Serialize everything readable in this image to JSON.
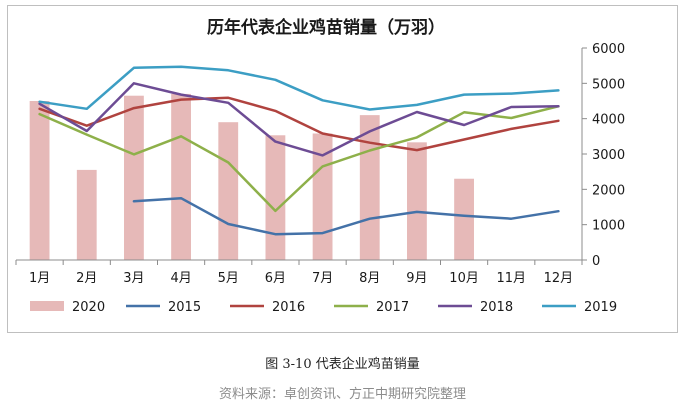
{
  "chart_data": {
    "type": "bar+line",
    "title": "历年代表企业鸡苗销量（万羽）",
    "categories": [
      "1月",
      "2月",
      "3月",
      "4月",
      "5月",
      "6月",
      "7月",
      "8月",
      "9月",
      "10月",
      "11月",
      "12月"
    ],
    "ylim": [
      0,
      6000
    ],
    "yticks": [
      0,
      1000,
      2000,
      3000,
      4000,
      5000,
      6000
    ],
    "grid": false,
    "legend_position": "bottom",
    "bar_series": {
      "name": "2020",
      "color": "#e6b9b8",
      "values": [
        4500,
        2550,
        4650,
        4700,
        3900,
        3530,
        3580,
        4100,
        3330,
        2300,
        null,
        null
      ]
    },
    "series": [
      {
        "name": "2015",
        "color": "#4472a8",
        "values": [
          null,
          null,
          1660,
          1750,
          1020,
          730,
          760,
          1170,
          1360,
          1250,
          1170,
          1380
        ]
      },
      {
        "name": "2016",
        "color": "#b0433f",
        "values": [
          4280,
          3800,
          4300,
          4540,
          4590,
          4220,
          3580,
          3320,
          3110,
          3410,
          3710,
          3940
        ]
      },
      {
        "name": "2017",
        "color": "#8eb04a",
        "values": [
          4130,
          3550,
          2990,
          3500,
          2760,
          1390,
          2650,
          3100,
          3470,
          4180,
          4020,
          4350
        ]
      },
      {
        "name": "2018",
        "color": "#6d4c94",
        "values": [
          4420,
          3650,
          5000,
          4680,
          4450,
          3350,
          2960,
          3640,
          4190,
          3820,
          4330,
          4350
        ]
      },
      {
        "name": "2019",
        "color": "#3c9ec4",
        "values": [
          4480,
          4280,
          5440,
          5470,
          5370,
          5100,
          4520,
          4260,
          4390,
          4680,
          4710,
          4800
        ]
      }
    ]
  },
  "figure": {
    "caption": "图 3-10 代表企业鸡苗销量",
    "source": "资料来源：卓创资讯、方正中期研究院整理"
  }
}
